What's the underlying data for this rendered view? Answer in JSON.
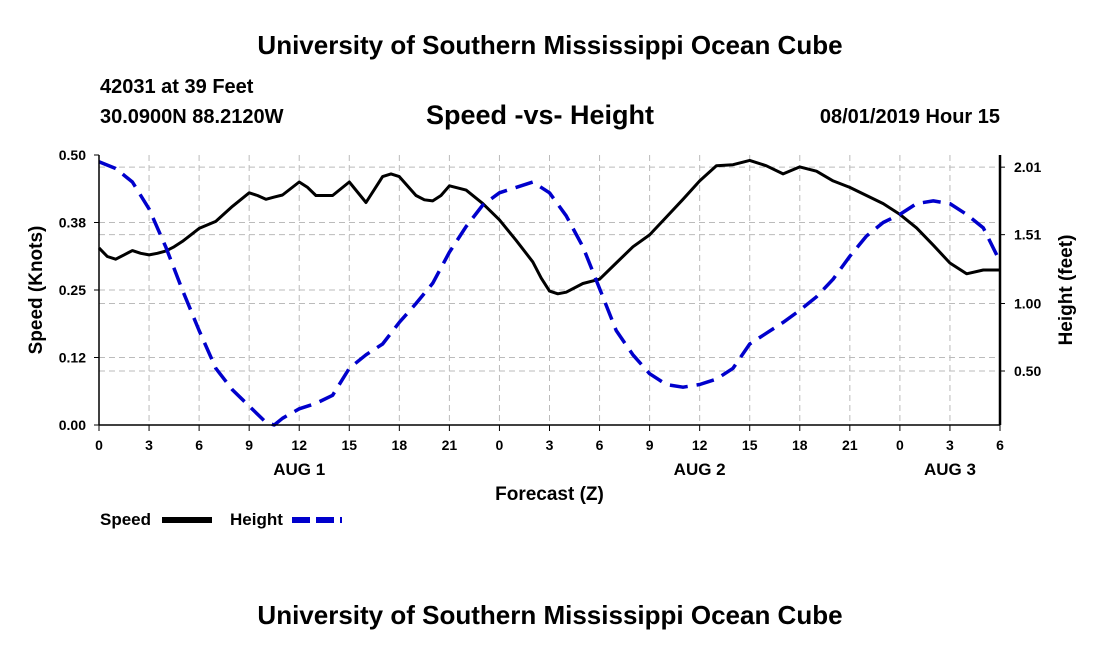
{
  "header": {
    "title_top": "University of Southern Mississippi Ocean Cube",
    "station": "42031 at 39 Feet",
    "latlon": "30.0900N 88.2120W",
    "chart_title": "Speed -vs- Height",
    "datetime": "08/01/2019 Hour 15",
    "title_bottom": "University of Southern Mississippi Ocean Cube"
  },
  "colors": {
    "speed": "#000000",
    "height": "#0000cc",
    "grid": "#bbbbbb"
  },
  "chart_data": {
    "type": "line",
    "title": "Speed -vs- Height",
    "xlabel": "Forecast (Z)",
    "ylabel": "Speed (Knots)",
    "y2label": "Height (feet)",
    "x_unit": "hours from 00Z Aug 1",
    "xlim": [
      0,
      54
    ],
    "x_ticks": [
      0,
      3,
      6,
      9,
      12,
      15,
      18,
      21,
      24,
      27,
      30,
      33,
      36,
      39,
      42,
      45,
      48,
      51,
      54
    ],
    "x_tick_labels": [
      "0",
      "3",
      "6",
      "9",
      "12",
      "15",
      "18",
      "21",
      "0",
      "3",
      "6",
      "9",
      "12",
      "15",
      "18",
      "21",
      "0",
      "3",
      "6"
    ],
    "day_labels": [
      {
        "x": 12,
        "label": "AUG 1"
      },
      {
        "x": 36,
        "label": "AUG 2"
      },
      {
        "x": 51,
        "label": "AUG 3"
      }
    ],
    "ylim": [
      0,
      0.5
    ],
    "y_ticks": [
      0,
      0.125,
      0.25,
      0.375,
      0.5
    ],
    "y_tick_labels": [
      "0.00",
      "0.12",
      "0.25",
      "0.38",
      "0.50"
    ],
    "y2lim": [
      0.1,
      2.1
    ],
    "y2_ticks": [
      0.5,
      1.0,
      1.51,
      2.01
    ],
    "y2_tick_labels": [
      "0.50",
      "1.00",
      "1.51",
      "2.01"
    ],
    "grid": true,
    "legend": [
      {
        "name": "Speed",
        "style": "solid"
      },
      {
        "name": "Height",
        "style": "dashed"
      }
    ],
    "series": [
      {
        "name": "Speed",
        "axis": "left",
        "x": [
          0,
          0.5,
          1,
          1.5,
          2,
          2.5,
          3,
          3.5,
          4,
          4.5,
          5,
          5.5,
          6,
          7,
          8,
          9,
          9.5,
          10,
          10.5,
          11,
          12,
          12.5,
          13,
          14,
          15,
          16,
          17,
          17.5,
          18,
          19,
          19.5,
          20,
          20.5,
          21,
          22,
          23,
          24,
          25,
          26,
          26.5,
          27,
          27.5,
          28,
          29,
          30,
          31,
          32,
          33,
          34,
          35,
          36,
          37,
          38,
          39,
          40,
          41,
          42,
          43,
          44,
          45,
          46,
          47,
          48,
          49,
          50,
          51,
          52,
          53,
          54
        ],
        "values": [
          0.328,
          0.312,
          0.307,
          0.315,
          0.323,
          0.318,
          0.315,
          0.318,
          0.322,
          0.33,
          0.34,
          0.352,
          0.364,
          0.377,
          0.405,
          0.43,
          0.425,
          0.418,
          0.422,
          0.426,
          0.45,
          0.44,
          0.425,
          0.425,
          0.45,
          0.412,
          0.46,
          0.465,
          0.46,
          0.425,
          0.417,
          0.415,
          0.425,
          0.443,
          0.435,
          0.41,
          0.38,
          0.342,
          0.302,
          0.272,
          0.248,
          0.243,
          0.246,
          0.262,
          0.27,
          0.3,
          0.33,
          0.352,
          0.385,
          0.418,
          0.452,
          0.48,
          0.482,
          0.49,
          0.48,
          0.465,
          0.478,
          0.47,
          0.452,
          0.44,
          0.425,
          0.41,
          0.39,
          0.365,
          0.333,
          0.3,
          0.28,
          0.287,
          0.287
        ]
      },
      {
        "name": "Height",
        "axis": "right",
        "x": [
          0,
          1,
          2,
          3,
          4,
          5,
          6,
          7,
          8,
          9,
          10,
          10.5,
          11,
          12,
          13,
          14,
          15,
          16,
          17,
          18,
          19,
          20,
          21,
          22,
          23,
          24,
          25,
          26,
          27,
          28,
          29,
          30,
          31,
          32,
          33,
          34,
          35,
          36,
          37,
          38,
          39,
          40,
          41,
          42,
          43,
          44,
          45,
          46,
          47,
          48,
          49,
          50,
          51,
          52,
          53,
          54
        ],
        "values": [
          2.05,
          2.0,
          1.9,
          1.7,
          1.42,
          1.1,
          0.8,
          0.52,
          0.36,
          0.24,
          0.12,
          0.1,
          0.15,
          0.22,
          0.26,
          0.32,
          0.52,
          0.62,
          0.7,
          0.86,
          1.0,
          1.15,
          1.38,
          1.57,
          1.73,
          1.82,
          1.86,
          1.9,
          1.82,
          1.65,
          1.42,
          1.11,
          0.8,
          0.62,
          0.48,
          0.4,
          0.38,
          0.4,
          0.44,
          0.52,
          0.7,
          0.78,
          0.86,
          0.95,
          1.05,
          1.18,
          1.35,
          1.5,
          1.6,
          1.66,
          1.74,
          1.76,
          1.74,
          1.66,
          1.56,
          1.31
        ]
      }
    ]
  }
}
